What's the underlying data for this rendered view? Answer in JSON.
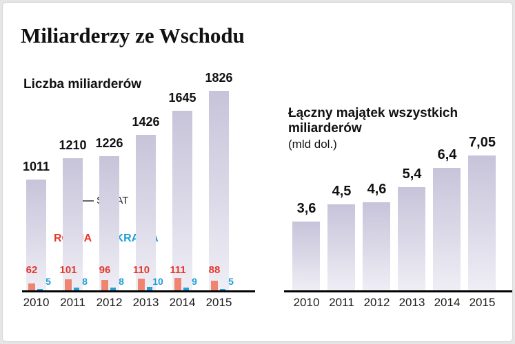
{
  "page": {
    "title": "Miliarderzy ze Wschodu"
  },
  "colors": {
    "rosja": "#e6372b",
    "rosja_bar": "#ef8570",
    "ukraina": "#1e9cd8",
    "ukraina_bar": "#22a1dd",
    "bar_gradient_top": "#c7c4da",
    "bar_gradient_bottom": "#efeef5",
    "axis": "#000000"
  },
  "chart_data": [
    {
      "type": "bar",
      "title": "Liczba miliarderów",
      "categories": [
        "2010",
        "2011",
        "2012",
        "2013",
        "2014",
        "2015"
      ],
      "series": [
        {
          "name": "ŚWIAT",
          "values": [
            1011,
            1210,
            1226,
            1426,
            1645,
            1826
          ]
        },
        {
          "name": "ROSJA",
          "values": [
            62,
            101,
            96,
            110,
            111,
            88
          ]
        },
        {
          "name": "UKRAINA",
          "values": [
            5,
            8,
            8,
            10,
            9,
            5
          ]
        }
      ],
      "ylim": [
        0,
        1826
      ],
      "grid": false,
      "legend_position": "inline-callouts"
    },
    {
      "type": "bar",
      "title": "Łączny majątek wszystkich miliarderów",
      "subtitle": "(mld dol.)",
      "categories": [
        "2010",
        "2011",
        "2012",
        "2013",
        "2014",
        "2015"
      ],
      "values": [
        3.6,
        4.5,
        4.6,
        5.4,
        6.4,
        7.05
      ],
      "value_labels": [
        "3,6",
        "4,5",
        "4,6",
        "5,4",
        "6,4",
        "7,05"
      ],
      "ylim": [
        0,
        7.05
      ],
      "grid": false
    }
  ]
}
